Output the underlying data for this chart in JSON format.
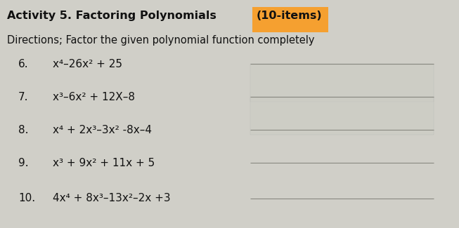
{
  "title": "Activity 5. Factoring Polynomials ",
  "title_highlight": "(10-items)",
  "directions": "Directions; Factor the given polynomial function completely",
  "items": [
    {
      "num": "6.",
      "expr": "x⁴–26x² + 25"
    },
    {
      "num": "7.",
      "expr": "x³–6x² + 12X–8"
    },
    {
      "num": "8.",
      "expr": "x⁴ + 2x³–3x² -8x–4"
    },
    {
      "num": "9.",
      "expr": "x³ + 9x² + 11x + 5"
    },
    {
      "num": "10.",
      "expr": "4x⁴ + 8x³–13x²–2x +3"
    }
  ],
  "bg_color": "#d0cfc8",
  "text_color": "#111111",
  "line_color": "#888880",
  "highlight_color": "#f5a030",
  "title_fontsize": 11.5,
  "directions_fontsize": 10.5,
  "item_fontsize": 11,
  "num_fontsize": 11
}
